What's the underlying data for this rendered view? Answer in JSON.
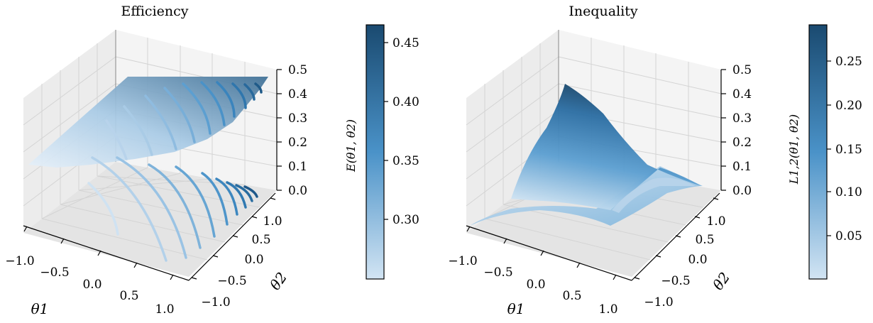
{
  "colors": {
    "light": "#d2e4f3",
    "mid": "#4a92c8",
    "dark": "#1a4a70"
  },
  "chart_data": [
    {
      "type": "surface3d",
      "title": "Efficiency",
      "xlabel": "θ1",
      "ylabel": "θ2",
      "zlabel": "",
      "xticks": [
        "−1.0",
        "−0.5",
        "0.0",
        "0.5",
        "1.0"
      ],
      "yticks": [
        "−1.0",
        "−0.5",
        "0.0",
        "0.5",
        "1.0"
      ],
      "zticks": [
        "0.0",
        "0.1",
        "0.2",
        "0.3",
        "0.4",
        "0.5"
      ],
      "xlim": [
        -1,
        1
      ],
      "ylim": [
        -1,
        1
      ],
      "zlim": [
        0,
        0.5
      ],
      "surface_z_range": [
        0.25,
        0.46
      ],
      "contours_projected_on_floor": true,
      "colorbar": {
        "label": "E(θ1, θ2)",
        "ticks": [
          "0.30",
          "0.35",
          "0.40",
          "0.45"
        ],
        "range": [
          0.25,
          0.465
        ]
      }
    },
    {
      "type": "surface3d",
      "title": "Inequality",
      "xlabel": "θ1",
      "ylabel": "θ2",
      "zlabel": "",
      "xticks": [
        "−1.0",
        "−0.5",
        "0.0",
        "0.5",
        "1.0"
      ],
      "yticks": [
        "−1.0",
        "−0.5",
        "0.0",
        "0.5",
        "1.0"
      ],
      "zticks": [
        "0.0",
        "0.1",
        "0.2",
        "0.3",
        "0.4",
        "0.5"
      ],
      "xlim": [
        -1,
        1
      ],
      "ylim": [
        -1,
        1
      ],
      "zlim": [
        0,
        0.5
      ],
      "surface_z_range": [
        0.0,
        0.29
      ],
      "contours_projected_on_floor": false,
      "colorbar": {
        "label": "L1,2(θ1, θ2)",
        "ticks": [
          "0.05",
          "0.10",
          "0.15",
          "0.20",
          "0.25"
        ],
        "range": [
          0.0,
          0.29
        ]
      }
    }
  ]
}
